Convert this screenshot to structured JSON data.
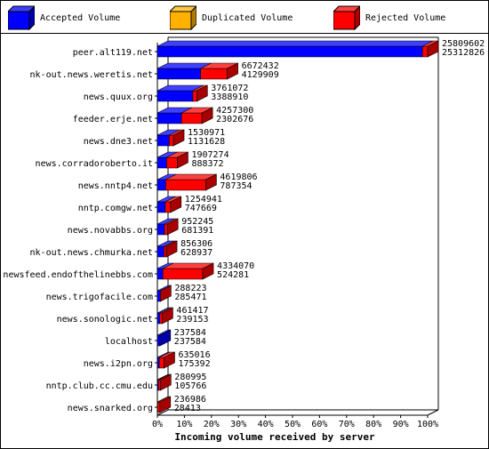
{
  "legend": [
    {
      "label": "Accepted Volume",
      "color": "#0000ff"
    },
    {
      "label": "Duplicated Volume",
      "color": "#ffb000"
    },
    {
      "label": "Rejected Volume",
      "color": "#ff0000"
    }
  ],
  "chart_data": {
    "type": "bar",
    "orientation": "horizontal",
    "stacked": true,
    "categories": [
      "peer.alt119.net",
      "nk-out.news.weretis.net",
      "news.quux.org",
      "feeder.erje.net",
      "news.dne3.net",
      "news.corradoroberto.it",
      "news.nntp4.net",
      "nntp.comgw.net",
      "news.novabbs.org",
      "nk-out.news.chmurka.net",
      "newsfeed.endofthelinebbs.com",
      "news.trigofacile.com",
      "news.sonologic.net",
      "localhost",
      "news.i2pn.org",
      "nntp.club.cc.cmu.edu",
      "news.snarked.org"
    ],
    "total_labels": [
      "25809602",
      "6672432",
      "3761072",
      "4257300",
      "1530971",
      "1907274",
      "4619806",
      "1254941",
      "952245",
      "856306",
      "4334070",
      "288223",
      "461417",
      "237584",
      "635016",
      "280995",
      "236986"
    ],
    "accepted_labels": [
      "25312826",
      "4129909",
      "3388910",
      "2302676",
      "1131628",
      "888372",
      "787354",
      "747669",
      "681391",
      "628937",
      "524281",
      "285471",
      "239153",
      "237584",
      "175392",
      "105766",
      "28413"
    ],
    "series": [
      {
        "name": "Accepted Volume",
        "values": [
          25312826,
          4129909,
          3388910,
          2302676,
          1131628,
          888372,
          787354,
          747669,
          681391,
          628937,
          524281,
          285471,
          239153,
          237584,
          175392,
          105766,
          28413
        ]
      },
      {
        "name": "Duplicated Volume",
        "values": [
          0,
          0,
          0,
          0,
          0,
          0,
          0,
          0,
          0,
          0,
          0,
          0,
          0,
          0,
          0,
          0,
          0
        ]
      },
      {
        "name": "Rejected Volume",
        "values": [
          496776,
          2542523,
          372162,
          1954624,
          399343,
          1018902,
          3832452,
          507272,
          270854,
          227369,
          3809789,
          2752,
          222264,
          0,
          459624,
          175229,
          208573
        ]
      }
    ],
    "xaxis": {
      "max": 25809602,
      "ticks": [
        "0%",
        "10%",
        "20%",
        "30%",
        "40%",
        "50%",
        "60%",
        "70%",
        "80%",
        "90%",
        "100%"
      ]
    },
    "xlabel": "Incoming volume received by server",
    "colors": {
      "accepted": "#0000ff",
      "duplicated": "#ffb000",
      "rejected": "#ff0000"
    }
  }
}
